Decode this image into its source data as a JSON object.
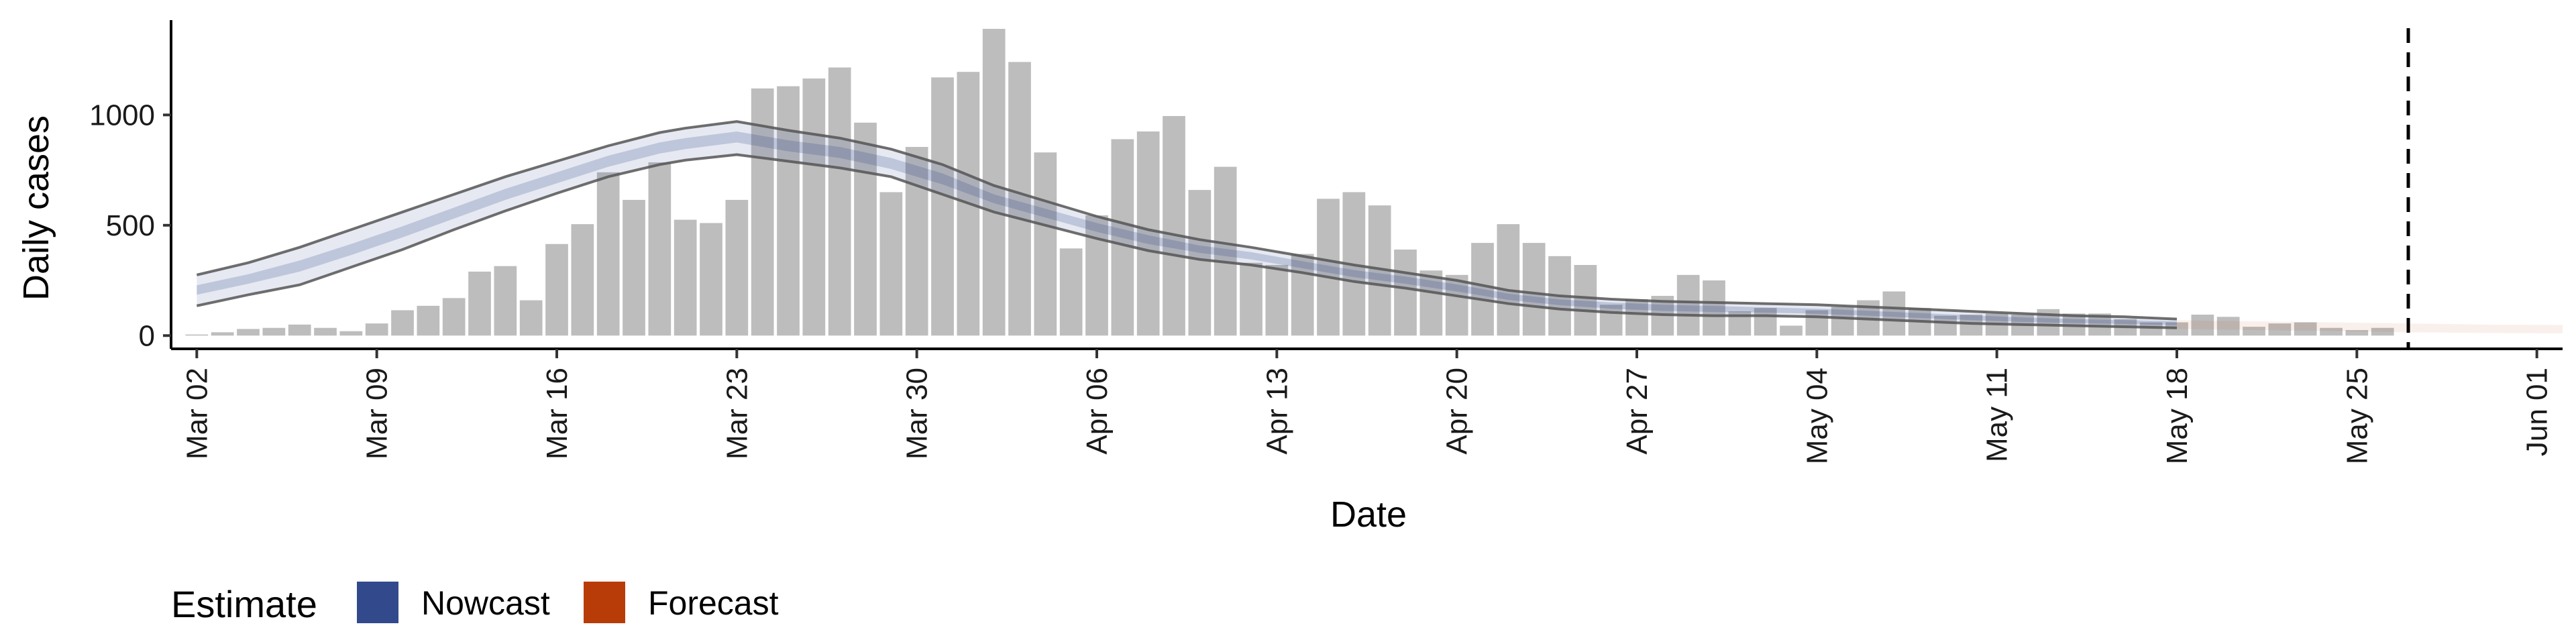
{
  "chart_data": {
    "type": "bar",
    "xlabel": "Date",
    "ylabel": "Daily cases",
    "x_start": "2020-03-02",
    "xlim": [
      "2020-03-01",
      "2020-06-02"
    ],
    "ylim": [
      -60,
      1460
    ],
    "y_ticks": [
      0,
      500,
      1000
    ],
    "x_ticks": [
      "2020-03-02",
      "2020-03-09",
      "2020-03-16",
      "2020-03-23",
      "2020-03-30",
      "2020-04-06",
      "2020-04-13",
      "2020-04-20",
      "2020-04-27",
      "2020-05-04",
      "2020-05-11",
      "2020-05-18",
      "2020-05-25",
      "2020-06-01"
    ],
    "x_tick_labels": [
      "Mar 02",
      "Mar 09",
      "Mar 16",
      "Mar 23",
      "Mar 30",
      "Apr 06",
      "Apr 13",
      "Apr 20",
      "Apr 27",
      "May 04",
      "May 11",
      "May 18",
      "May 25",
      "Jun 01"
    ],
    "vline_date": "2020-05-27",
    "cases": [
      5,
      15,
      30,
      35,
      50,
      35,
      20,
      55,
      115,
      135,
      170,
      290,
      315,
      160,
      415,
      505,
      740,
      615,
      785,
      525,
      510,
      615,
      1120,
      1130,
      1165,
      1215,
      965,
      650,
      855,
      1170,
      1195,
      1390,
      1240,
      830,
      395,
      545,
      890,
      925,
      995,
      660,
      765,
      330,
      320,
      370,
      620,
      650,
      590,
      390,
      295,
      275,
      420,
      505,
      420,
      360,
      320,
      140,
      165,
      180,
      275,
      250,
      110,
      125,
      45,
      115,
      130,
      160,
      200,
      125,
      90,
      95,
      100,
      95,
      120,
      100,
      100,
      75,
      60,
      60,
      95,
      85,
      40,
      55,
      60,
      35,
      25,
      35
    ],
    "series": [
      {
        "name": "Nowcast",
        "color": "#32498c",
        "dates": [
          "2020-03-02",
          "2020-03-04",
          "2020-03-06",
          "2020-03-08",
          "2020-03-10",
          "2020-03-12",
          "2020-03-14",
          "2020-03-16",
          "2020-03-18",
          "2020-03-20",
          "2020-03-21",
          "2020-03-23",
          "2020-03-25",
          "2020-03-27",
          "2020-03-29",
          "2020-03-31",
          "2020-04-02",
          "2020-04-04",
          "2020-04-06",
          "2020-04-08",
          "2020-04-10",
          "2020-04-12",
          "2020-04-14",
          "2020-04-16",
          "2020-04-18",
          "2020-04-20",
          "2020-04-22",
          "2020-04-24",
          "2020-04-26",
          "2020-04-28",
          "2020-04-30",
          "2020-05-02",
          "2020-05-04",
          "2020-05-06",
          "2020-05-08",
          "2020-05-10",
          "2020-05-12",
          "2020-05-14",
          "2020-05-16",
          "2020-05-18"
        ],
        "median": [
          205,
          255,
          315,
          390,
          470,
          555,
          640,
          715,
          790,
          850,
          870,
          900,
          860,
          830,
          780,
          710,
          620,
          555,
          490,
          435,
          390,
          360,
          320,
          280,
          250,
          215,
          175,
          150,
          135,
          125,
          120,
          115,
          110,
          100,
          90,
          80,
          70,
          65,
          60,
          55
        ],
        "lower90": [
          135,
          185,
          230,
          310,
          390,
          480,
          565,
          645,
          720,
          775,
          795,
          820,
          790,
          760,
          720,
          640,
          560,
          500,
          440,
          385,
          345,
          320,
          285,
          245,
          215,
          180,
          145,
          120,
          105,
          95,
          90,
          90,
          85,
          75,
          65,
          55,
          50,
          45,
          40,
          35
        ],
        "upper90": [
          275,
          330,
          400,
          480,
          560,
          640,
          720,
          790,
          860,
          920,
          940,
          970,
          930,
          895,
          845,
          775,
          680,
          610,
          540,
          480,
          435,
          400,
          360,
          320,
          285,
          250,
          205,
          180,
          165,
          155,
          150,
          145,
          140,
          130,
          120,
          110,
          100,
          90,
          85,
          75
        ],
        "lower50": [
          185,
          235,
          290,
          365,
          445,
          530,
          615,
          690,
          765,
          825,
          845,
          875,
          835,
          805,
          755,
          685,
          600,
          535,
          470,
          415,
          375,
          345,
          305,
          265,
          235,
          200,
          162,
          138,
          122,
          112,
          107,
          104,
          99,
          90,
          80,
          70,
          62,
          57,
          52,
          47
        ],
        "upper50": [
          228,
          278,
          340,
          415,
          495,
          580,
          665,
          740,
          815,
          875,
          895,
          925,
          885,
          855,
          805,
          735,
          640,
          575,
          510,
          455,
          408,
          378,
          337,
          297,
          267,
          232,
          190,
          164,
          150,
          140,
          134,
          128,
          122,
          112,
          102,
          92,
          82,
          75,
          70,
          65
        ]
      },
      {
        "name": "Forecast",
        "color": "#b83c07",
        "dates": [
          "2020-05-18",
          "2020-05-21",
          "2020-05-24",
          "2020-05-27",
          "2020-05-30",
          "2020-06-02"
        ],
        "median": [
          50,
          45,
          40,
          35,
          30,
          28
        ],
        "lower90": [
          30,
          25,
          20,
          15,
          12,
          10
        ],
        "upper90": [
          70,
          65,
          60,
          55,
          50,
          48
        ]
      }
    ],
    "legend_title": "Estimate",
    "legend_position": "bottom-left",
    "grid": false
  }
}
